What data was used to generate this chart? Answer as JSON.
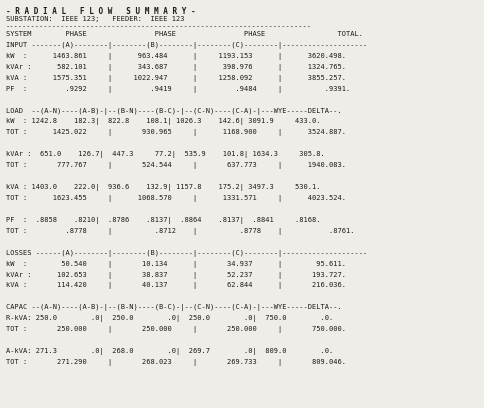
{
  "title_line1": "- R A D I A L   F L O W   S U M M A R Y -",
  "title_line2": "SUBSTATION:  IEEE 123;   FEEDER:  IEEE 123",
  "separator": "------------------------------------------------------------------------",
  "lines": [
    "SYSTEM        PHASE                PHASE                PHASE                 TOTAL.",
    "INPUT -------(A)--------|--------(B)--------|--------(C)--------|--------------------",
    "kW  :      1463.861     |      963.484      |     1193.153      |      3620.498.",
    "kVAr :      582.101     |      343.687      |      398.976      |      1324.765.",
    "kVA :      1575.351     |     1022.947      |     1258.092      |      3855.257.",
    "PF  :         .9292     |         .9419     |         .9484     |          .9391.",
    " ",
    "LOAD  --(A-N)----(A-B)-|--(B-N)----(B-C)-|--(C-N)----(C-A)-|---WYE-----DELTA--.",
    "kW  : 1242.8    182.3|  822.8    108.1| 1026.3    142.6| 3091.9     433.0.",
    "TOT :      1425.022     |       930.965     |      1168.900     |      3524.887.",
    " ",
    "kVAr :  651.0    126.7|  447.3     77.2|  535.9    101.8| 1634.3     305.8.",
    "TOT :       777.767     |       524.544     |       637.773     |      1940.083.",
    " ",
    "kVA : 1403.0    222.0|  936.6    132.9| 1157.8    175.2| 3497.3     530.1.",
    "TOT :      1623.455     |      1068.570     |      1331.571     |      4023.524.",
    " ",
    "PF  :  .8858    .8210|  .8786    .8137|  .8864    .8137|  .8841     .8168.",
    "TOT :         .8778     |          .8712    |          .8778    |           .8761.",
    " ",
    "LOSSES ------(A)--------|--------(B)--------|--------(C)--------|--------------------",
    "kW  :        50.540     |       10.134      |       34.937      |        95.611.",
    "kVAr :      102.653     |       38.837      |       52.237      |       193.727.",
    "kVA :       114.420     |       40.137      |       62.844      |       216.036.",
    " ",
    "CAPAC --(A-N)----(A-B)-|--(B-N)----(B-C)-|--(C-N)----(C-A)-|---WYE-----DELTA--.",
    "R-kVA: 250.0        .0|  250.0        .0|  250.0        .0|  750.0        .0.",
    "TOT :       250.000     |       250.000     |       250.000     |       750.000.",
    " ",
    "A-kVA: 271.3        .0|  268.0        .0|  269.7        .0|  809.0        .0.",
    "TOT :       271.290     |       268.023     |       269.733     |       809.046."
  ],
  "bg_color": "#f0ede8",
  "text_color": "#1a1a1a",
  "font_size": 5.05,
  "title_font_size": 5.5
}
